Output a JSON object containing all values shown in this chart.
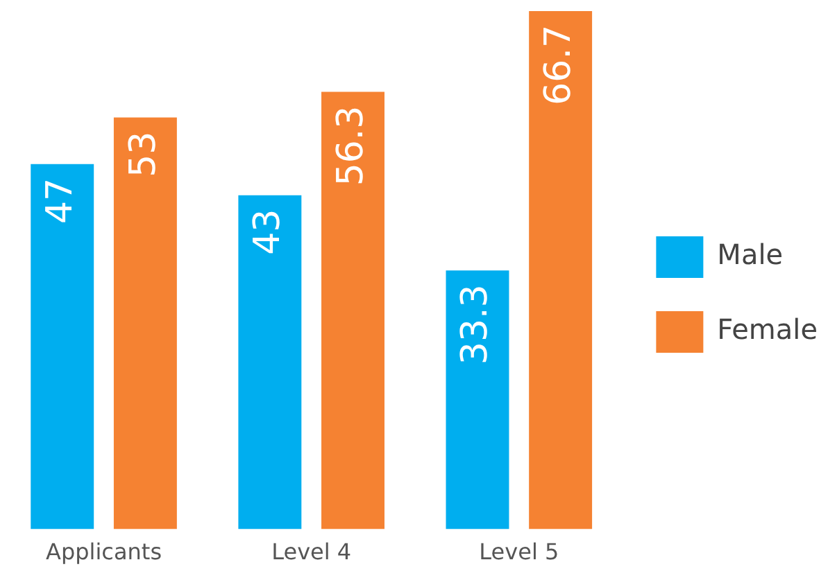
{
  "chart_data": {
    "type": "bar",
    "categories": [
      "Applicants",
      "Level 4",
      "Level 5"
    ],
    "series": [
      {
        "name": "Male",
        "color": "#00aeef",
        "values": [
          47,
          43,
          33.3
        ]
      },
      {
        "name": "Female",
        "color": "#f58232",
        "values": [
          53,
          56.3,
          66.7
        ]
      }
    ],
    "data_labels": true,
    "legend": "right",
    "grid": false,
    "tick_labels": "x"
  }
}
